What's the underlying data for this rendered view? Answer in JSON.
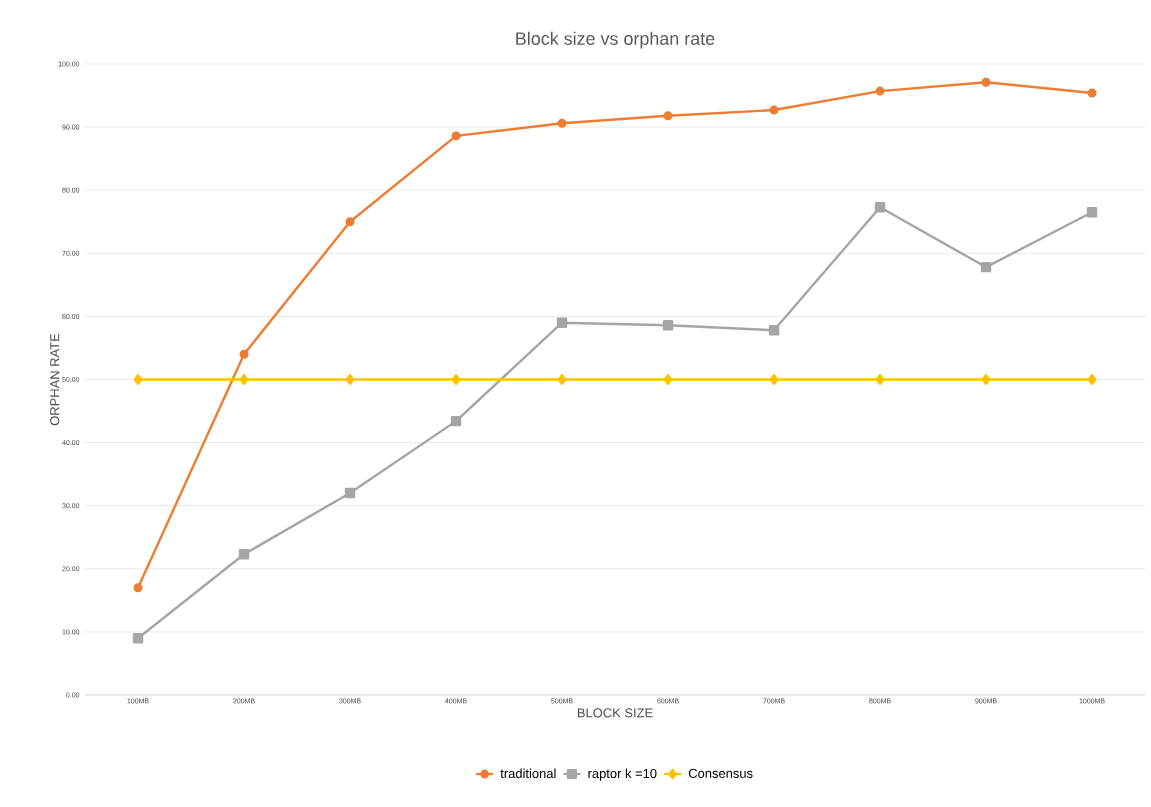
{
  "chart_data": {
    "type": "line",
    "title": "Block size vs orphan rate",
    "xlabel": "BLOCK SIZE",
    "ylabel": "ORPHAN RATE",
    "categories": [
      "100MB",
      "200MB",
      "300MB",
      "400MB",
      "500MB",
      "600MB",
      "700MB",
      "800MB",
      "900MB",
      "1000MB"
    ],
    "series": [
      {
        "name": "traditional",
        "color": "#ed7d31",
        "marker": "circle",
        "values": [
          17.0,
          54.0,
          75.0,
          88.6,
          90.6,
          91.8,
          92.7,
          95.7,
          97.1,
          95.4
        ]
      },
      {
        "name": "raptor k =10",
        "color": "#a5a5a5",
        "marker": "square",
        "values": [
          9.0,
          22.3,
          32.0,
          43.4,
          59.0,
          58.6,
          57.8,
          77.3,
          67.8,
          76.5
        ]
      },
      {
        "name": "Consensus",
        "color": "#ffc000",
        "marker": "diamond",
        "values": [
          50,
          50,
          50,
          50,
          50,
          50,
          50,
          50,
          50,
          50
        ]
      }
    ],
    "ylim": [
      0,
      100
    ],
    "yticks": [
      {
        "value": 0,
        "label": "0.00"
      },
      {
        "value": 10,
        "label": "10.00"
      },
      {
        "value": 20,
        "label": "20.00"
      },
      {
        "value": 30,
        "label": "30.00"
      },
      {
        "value": 40,
        "label": "40.00"
      },
      {
        "value": 50,
        "label": "50.00"
      },
      {
        "value": 60,
        "label": "60.00"
      },
      {
        "value": 70,
        "label": "70.00"
      },
      {
        "value": 80,
        "label": "80.00"
      },
      {
        "value": 90,
        "label": "90.00"
      },
      {
        "value": 100,
        "label": "100.00"
      }
    ],
    "grid": "y",
    "legend": "bottom",
    "line_style": "solid"
  }
}
